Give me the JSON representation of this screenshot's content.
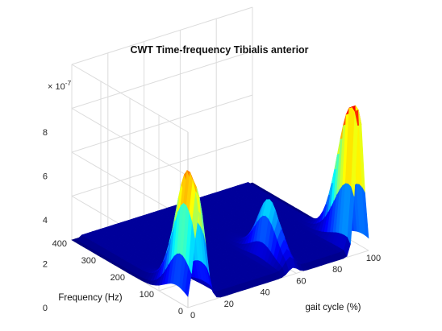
{
  "chart_data": {
    "type": "surface",
    "title": "CWT Time-frequency Tibialis anterior",
    "xlabel": "gait cycle (%)",
    "ylabel": "Frequency (Hz)",
    "zlabel": "",
    "z_multiplier_label": "× 10",
    "z_multiplier_exponent": "-7",
    "xlim": [
      0,
      100
    ],
    "ylim": [
      0,
      400
    ],
    "zlim": [
      0,
      8
    ],
    "x_ticks": [
      0,
      20,
      40,
      60,
      80,
      100
    ],
    "y_ticks": [
      0,
      100,
      200,
      300,
      400
    ],
    "z_ticks": [
      0,
      2,
      4,
      6,
      8
    ],
    "z_tick_labels": [
      "0",
      "2",
      "4",
      "6",
      "8"
    ],
    "colormap": [
      "#00007f",
      "#0000ff",
      "#007fff",
      "#00ffff",
      "#7fff7f",
      "#ffff00",
      "#ff7f00",
      "#ff0000",
      "#7f0000"
    ],
    "grid": true,
    "peaks": [
      {
        "gait_cycle_percent": 7,
        "frequency_hz": 20,
        "amplitude": 3.2
      },
      {
        "gait_cycle_percent": 6,
        "frequency_hz": 45,
        "amplitude": 2.8
      },
      {
        "gait_cycle_percent": 58,
        "frequency_hz": 80,
        "amplitude": 2.6
      },
      {
        "gait_cycle_percent": 95,
        "frequency_hz": 20,
        "amplitude": 7.0
      }
    ],
    "baseline_amplitude": 0.2
  }
}
